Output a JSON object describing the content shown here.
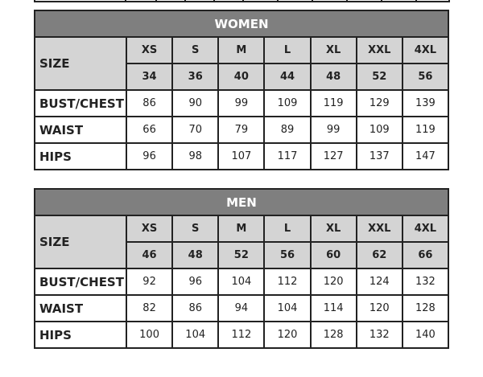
{
  "sections": [
    {
      "title": "WOMEN",
      "size_label": "SIZE",
      "sizes": [
        "XS",
        "S",
        "M",
        "L",
        "XL",
        "XXL",
        "4XL"
      ],
      "numbers": [
        "34",
        "36",
        "40",
        "44",
        "48",
        "52",
        "56"
      ],
      "rows": [
        {
          "label": "BUST/CHEST",
          "values": [
            "86",
            "90",
            "99",
            "109",
            "119",
            "129",
            "139"
          ]
        },
        {
          "label": "WAIST",
          "values": [
            "66",
            "70",
            "79",
            "89",
            "99",
            "109",
            "119"
          ]
        },
        {
          "label": "HIPS",
          "values": [
            "96",
            "98",
            "107",
            "117",
            "127",
            "137",
            "147"
          ]
        }
      ]
    },
    {
      "title": "MEN",
      "size_label": "SIZE",
      "sizes": [
        "XS",
        "S",
        "M",
        "L",
        "XL",
        "XXL",
        "4XL"
      ],
      "numbers": [
        "46",
        "48",
        "52",
        "56",
        "60",
        "62",
        "66"
      ],
      "rows": [
        {
          "label": "BUST/CHEST",
          "values": [
            "92",
            "96",
            "104",
            "112",
            "120",
            "124",
            "132"
          ]
        },
        {
          "label": "WAIST",
          "values": [
            "82",
            "86",
            "94",
            "104",
            "114",
            "120",
            "128"
          ]
        },
        {
          "label": "HIPS",
          "values": [
            "100",
            "104",
            "112",
            "120",
            "128",
            "132",
            "140"
          ]
        }
      ]
    }
  ],
  "colors": {
    "header": "#7f7f7f",
    "size_cell": "#d4d4d4",
    "border": "#222222"
  }
}
